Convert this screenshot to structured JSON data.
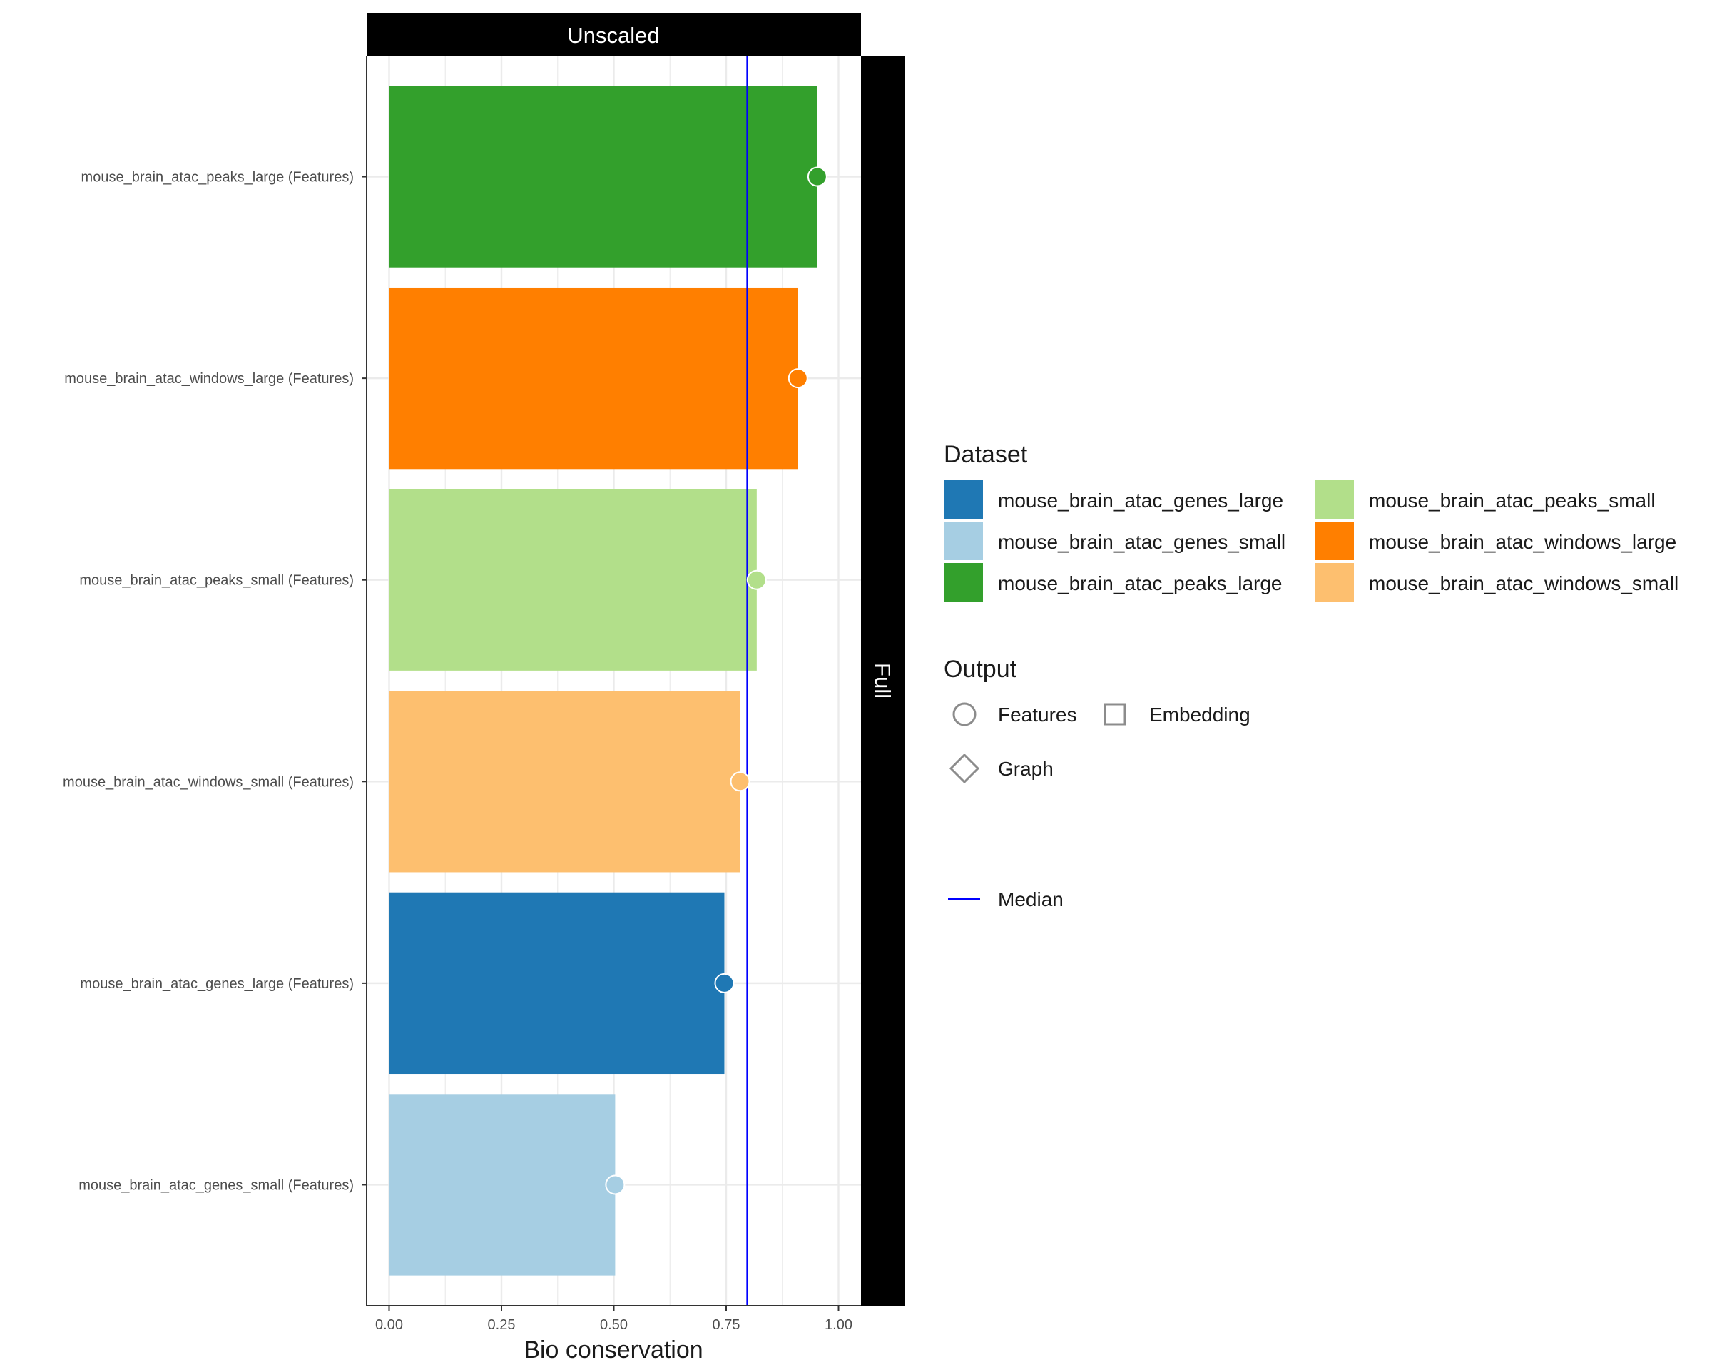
{
  "chart_data": {
    "type": "bar",
    "facet_top": "Unscaled",
    "facet_right": "Full",
    "xlabel": "Bio conservation",
    "ylabel": "",
    "xlim": [
      0,
      1.05
    ],
    "x_ticks": [
      0,
      0.25,
      0.5,
      0.75,
      1
    ],
    "x_tick_labels": [
      "0.00",
      "0.25",
      "0.50",
      "0.75",
      "1.00"
    ],
    "categories": [
      "mouse_brain_atac_peaks_large (Features)",
      "mouse_brain_atac_windows_large (Features)",
      "mouse_brain_atac_peaks_small (Features)",
      "mouse_brain_atac_windows_small (Features)",
      "mouse_brain_atac_genes_large (Features)",
      "mouse_brain_atac_genes_small (Features)"
    ],
    "values": [
      0.953,
      0.91,
      0.818,
      0.781,
      0.746,
      0.503
    ],
    "datasets": [
      "mouse_brain_atac_peaks_large",
      "mouse_brain_atac_windows_large",
      "mouse_brain_atac_peaks_small",
      "mouse_brain_atac_windows_small",
      "mouse_brain_atac_genes_large",
      "mouse_brain_atac_genes_small"
    ],
    "outputs": [
      "Features",
      "Features",
      "Features",
      "Features",
      "Features",
      "Features"
    ],
    "median": 0.797,
    "grid": true,
    "legend_placement": "right"
  },
  "legend": {
    "dataset_title": "Dataset",
    "dataset_items": [
      {
        "label": "mouse_brain_atac_genes_large",
        "color": "#1F78B4"
      },
      {
        "label": "mouse_brain_atac_genes_small",
        "color": "#A6CEE3"
      },
      {
        "label": "mouse_brain_atac_peaks_large",
        "color": "#33A02C"
      },
      {
        "label": "mouse_brain_atac_peaks_small",
        "color": "#B2DF8A"
      },
      {
        "label": "mouse_brain_atac_windows_large",
        "color": "#FF7F00"
      },
      {
        "label": "mouse_brain_atac_windows_small",
        "color": "#FDBF6F"
      }
    ],
    "output_title": "Output",
    "output_items": [
      {
        "label": "Features",
        "shape": "circle"
      },
      {
        "label": "Embedding",
        "shape": "square"
      },
      {
        "label": "Graph",
        "shape": "diamond"
      }
    ],
    "median_label": "Median",
    "median_color": "#0000FF"
  }
}
